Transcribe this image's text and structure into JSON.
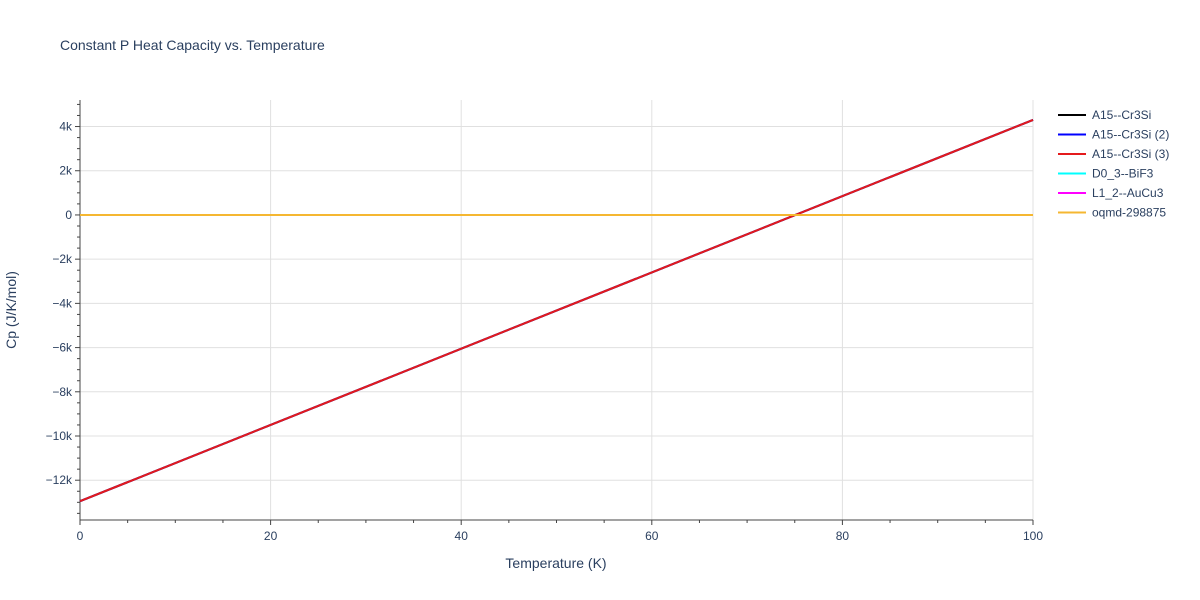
{
  "chart_data": {
    "type": "line",
    "title": "Constant P Heat Capacity vs. Temperature",
    "xlabel": "Temperature (K)",
    "ylabel": "Cp (J/K/mol)",
    "xlim": [
      0,
      100
    ],
    "ylim": [
      -13800,
      5200
    ],
    "xticks": [
      0,
      20,
      40,
      60,
      80,
      100
    ],
    "xtick_labels": [
      "0",
      "20",
      "40",
      "60",
      "80",
      "100"
    ],
    "yticks": [
      -12000,
      -10000,
      -8000,
      -6000,
      -4000,
      -2000,
      0,
      2000,
      4000
    ],
    "ytick_labels": [
      "−12k",
      "−10k",
      "−8k",
      "−6k",
      "−4k",
      "−2k",
      "0",
      "2k",
      "4k"
    ],
    "grid": true,
    "legend_position": "top-right",
    "series": [
      {
        "name": "A15--Cr3Si",
        "color": "#000000",
        "x": [
          0,
          100
        ],
        "y": [
          -12950,
          4300
        ]
      },
      {
        "name": "A15--Cr3Si (2)",
        "color": "#0000ff",
        "x": [
          0,
          100
        ],
        "y": [
          -12950,
          4300
        ]
      },
      {
        "name": "A15--Cr3Si (3)",
        "color": "#e41a1c",
        "x": [
          0,
          100
        ],
        "y": [
          -12950,
          4300
        ]
      },
      {
        "name": "D0_3--BiF3",
        "color": "#00ffff",
        "x": [
          0,
          100
        ],
        "y": [
          0,
          0
        ]
      },
      {
        "name": "L1_2--AuCu3",
        "color": "#ff00ff",
        "x": [
          0,
          100
        ],
        "y": [
          0,
          0
        ]
      },
      {
        "name": "oqmd-298875",
        "color": "#f5b731",
        "x": [
          0,
          100
        ],
        "y": [
          0,
          0
        ]
      }
    ]
  }
}
